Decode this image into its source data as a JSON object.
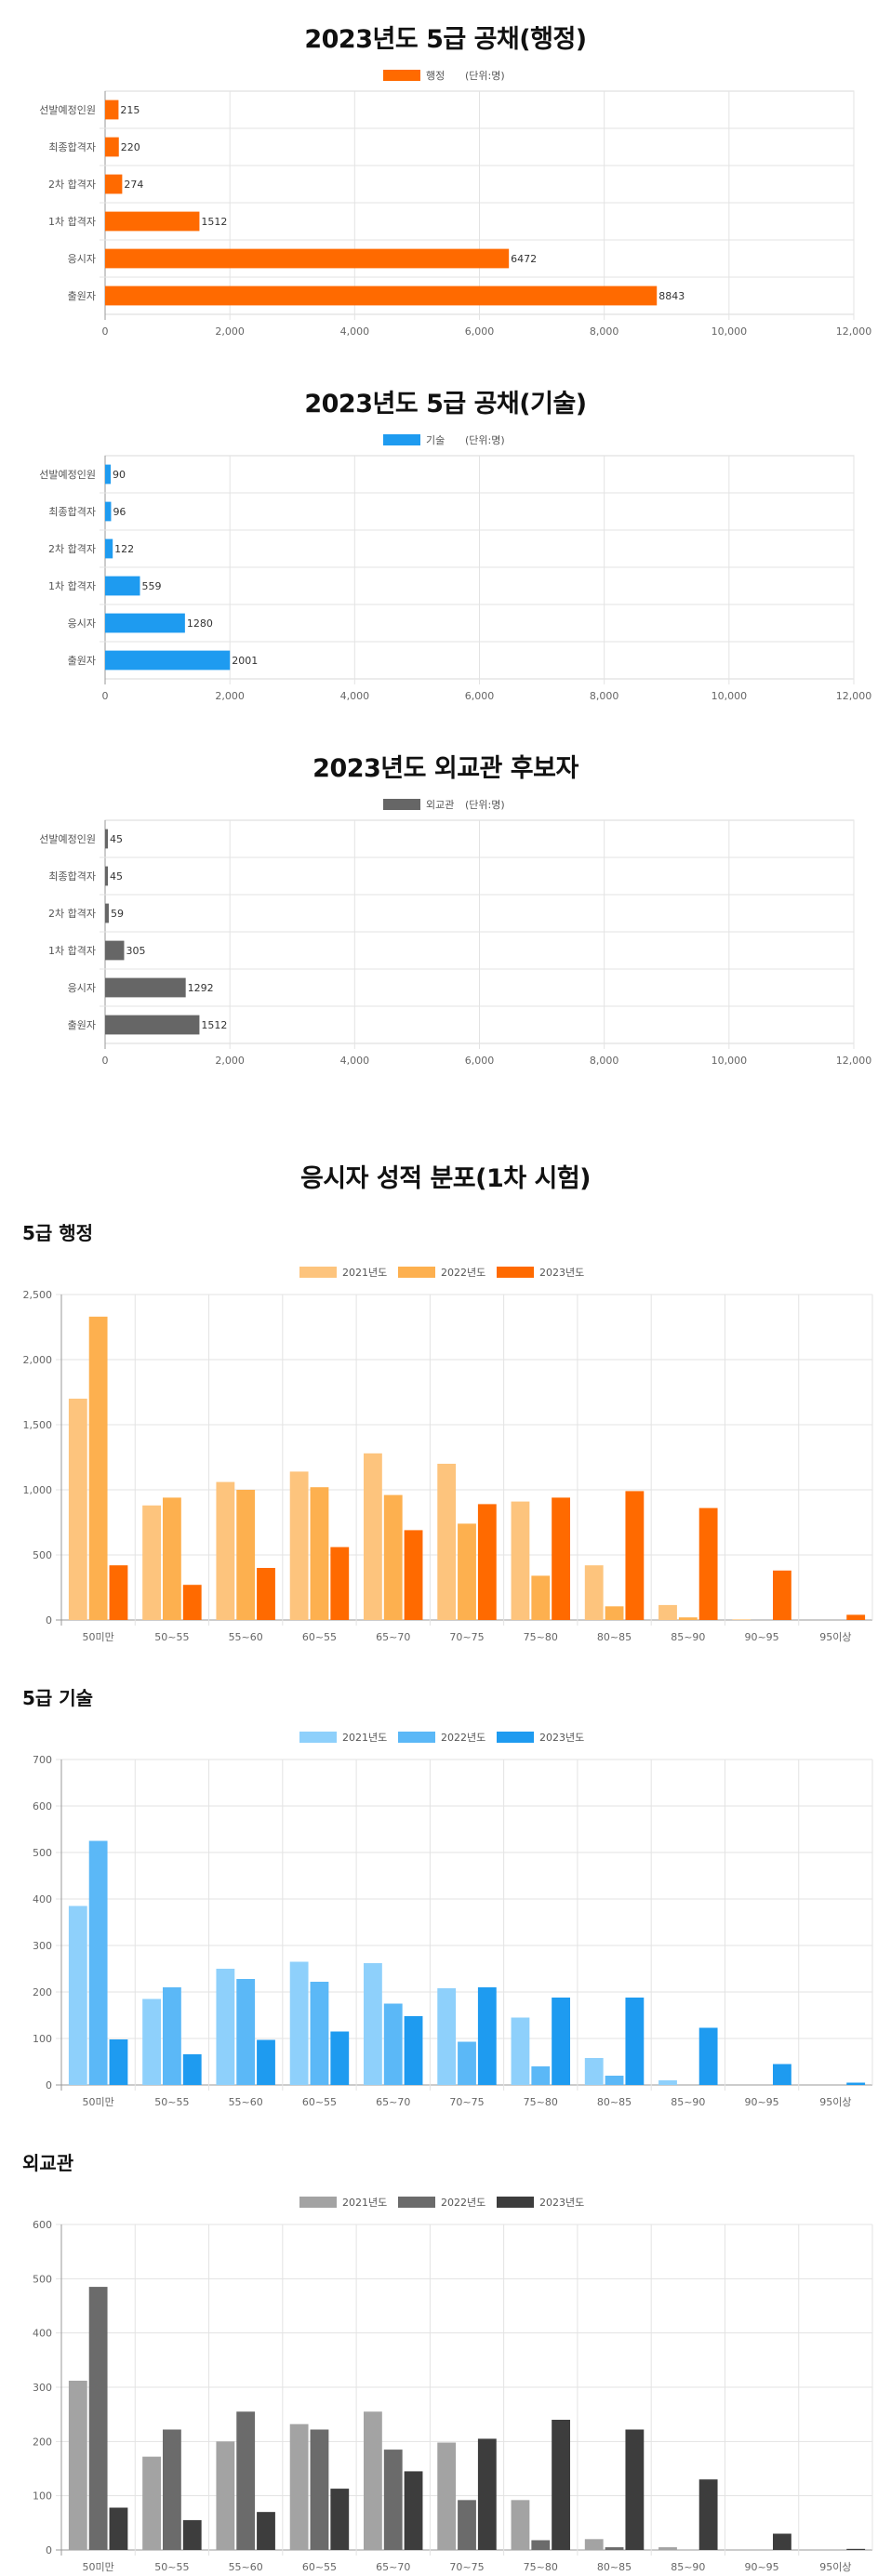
{
  "hbar_charts": [
    {
      "title": "2023년도 5급 공채(행정)",
      "legend_label": "행정",
      "unit_note": "(단위:명)",
      "color": "#FF6A00"
    },
    {
      "title": "2023년도 5급 공채(기술)",
      "legend_label": "기술",
      "unit_note": "(단위:명)",
      "color": "#1E9BF0"
    },
    {
      "title": "2023년도 외교관 후보자",
      "legend_label": "외교관",
      "unit_note": "(단위:명)",
      "color": "#666666"
    }
  ],
  "distribution": {
    "title": "응시자 성적 분포(1차 시험)",
    "subtitles": [
      "5급 행정",
      "5급 기술",
      "외교관"
    ]
  },
  "chart_data": [
    {
      "type": "bar",
      "orientation": "horizontal",
      "title": "2023년도 5급 공채(행정)",
      "categories": [
        "선발예정인원",
        "최종합격자",
        "2차 합격자",
        "1차 합격자",
        "응시자",
        "출원자"
      ],
      "series": [
        {
          "name": "행정",
          "values": [
            215,
            220,
            274,
            1512,
            6472,
            8843
          ]
        }
      ],
      "xlim": [
        0,
        12000
      ],
      "xticks": [
        0,
        2000,
        4000,
        6000,
        8000,
        10000,
        12000
      ],
      "tick_labels": [
        "0",
        "2,000",
        "4,000",
        "6,000",
        "8,000",
        "10,000",
        "12,000"
      ],
      "legend": "top-center",
      "grid": true
    },
    {
      "type": "bar",
      "orientation": "horizontal",
      "title": "2023년도 5급 공채(기술)",
      "categories": [
        "선발예정인원",
        "최종합격자",
        "2차 합격자",
        "1차 합격자",
        "응시자",
        "출원자"
      ],
      "series": [
        {
          "name": "기술",
          "values": [
            90,
            96,
            122,
            559,
            1280,
            2001
          ]
        }
      ],
      "xlim": [
        0,
        12000
      ],
      "xticks": [
        0,
        2000,
        4000,
        6000,
        8000,
        10000,
        12000
      ],
      "tick_labels": [
        "0",
        "2,000",
        "4,000",
        "6,000",
        "8,000",
        "10,000",
        "12,000"
      ],
      "legend": "top-center",
      "grid": true
    },
    {
      "type": "bar",
      "orientation": "horizontal",
      "title": "2023년도 외교관 후보자",
      "categories": [
        "선발예정인원",
        "최종합격자",
        "2차 합격자",
        "1차 합격자",
        "응시자",
        "출원자"
      ],
      "series": [
        {
          "name": "외교관",
          "values": [
            45,
            45,
            59,
            305,
            1292,
            1512
          ]
        }
      ],
      "xlim": [
        0,
        12000
      ],
      "xticks": [
        0,
        2000,
        4000,
        6000,
        8000,
        10000,
        12000
      ],
      "tick_labels": [
        "0",
        "2,000",
        "4,000",
        "6,000",
        "8,000",
        "10,000",
        "12,000"
      ],
      "legend": "top-center",
      "grid": true
    },
    {
      "type": "bar",
      "orientation": "vertical",
      "title": "5급 행정",
      "categories": [
        "50미만",
        "50~55",
        "55~60",
        "60~55",
        "65~70",
        "70~75",
        "75~80",
        "80~85",
        "85~90",
        "90~95",
        "95이상"
      ],
      "series": [
        {
          "name": "2021년도",
          "color": "#FDC47D",
          "values": [
            1700,
            880,
            1060,
            1140,
            1280,
            1200,
            910,
            420,
            115,
            5,
            0
          ]
        },
        {
          "name": "2022년도",
          "color": "#FDB04F",
          "values": [
            2330,
            940,
            1000,
            1020,
            960,
            740,
            340,
            105,
            20,
            0,
            0
          ]
        },
        {
          "name": "2023년도",
          "color": "#FF6A00",
          "values": [
            420,
            270,
            400,
            560,
            690,
            890,
            940,
            990,
            860,
            380,
            40
          ]
        }
      ],
      "ylim": [
        0,
        2500
      ],
      "yticks": [
        0,
        500,
        1000,
        1500,
        2000,
        2500
      ],
      "tick_labels": [
        "0",
        "500",
        "1,000",
        "1,500",
        "2,000",
        "2,500"
      ],
      "legend": "top-center",
      "grid": true
    },
    {
      "type": "bar",
      "orientation": "vertical",
      "title": "5급 기술",
      "categories": [
        "50미만",
        "50~55",
        "55~60",
        "60~55",
        "65~70",
        "70~75",
        "75~80",
        "80~85",
        "85~90",
        "90~95",
        "95이상"
      ],
      "series": [
        {
          "name": "2021년도",
          "color": "#8ED0FB",
          "values": [
            385,
            185,
            250,
            265,
            262,
            208,
            145,
            58,
            10,
            0,
            0
          ]
        },
        {
          "name": "2022년도",
          "color": "#5BB8F7",
          "values": [
            525,
            210,
            228,
            222,
            175,
            93,
            40,
            20,
            0,
            0,
            0
          ]
        },
        {
          "name": "2023년도",
          "color": "#1E9BF0",
          "values": [
            98,
            66,
            97,
            115,
            148,
            210,
            188,
            188,
            123,
            45,
            5
          ]
        }
      ],
      "ylim": [
        0,
        700
      ],
      "yticks": [
        0,
        100,
        200,
        300,
        400,
        500,
        600,
        700
      ],
      "tick_labels": [
        "0",
        "100",
        "200",
        "300",
        "400",
        "500",
        "600",
        "700"
      ],
      "legend": "top-center",
      "grid": true
    },
    {
      "type": "bar",
      "orientation": "vertical",
      "title": "외교관",
      "categories": [
        "50미만",
        "50~55",
        "55~60",
        "60~55",
        "65~70",
        "70~75",
        "75~80",
        "80~85",
        "85~90",
        "90~95",
        "95이상"
      ],
      "series": [
        {
          "name": "2021년도",
          "color": "#A3A3A3",
          "values": [
            312,
            172,
            200,
            232,
            255,
            198,
            92,
            20,
            5,
            0,
            0
          ]
        },
        {
          "name": "2022년도",
          "color": "#6B6B6B",
          "values": [
            485,
            222,
            255,
            222,
            185,
            92,
            18,
            5,
            0,
            0,
            0
          ]
        },
        {
          "name": "2023년도",
          "color": "#3D3D3D",
          "values": [
            78,
            55,
            70,
            113,
            145,
            205,
            240,
            222,
            130,
            30,
            2
          ]
        }
      ],
      "ylim": [
        0,
        600
      ],
      "yticks": [
        0,
        100,
        200,
        300,
        400,
        500,
        600
      ],
      "tick_labels": [
        "0",
        "100",
        "200",
        "300",
        "400",
        "500",
        "600"
      ],
      "legend": "top-center",
      "grid": true
    }
  ]
}
